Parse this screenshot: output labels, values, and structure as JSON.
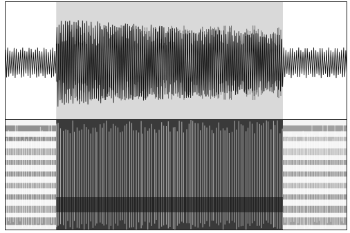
{
  "selection": {
    "start_fraction": 0.148,
    "end_fraction": 0.81
  },
  "colors": {
    "waveform": "#111111",
    "selection_fill": "#d9d9d9",
    "frame": "#1a1a1a",
    "background": "#ffffff"
  },
  "waveform": {
    "cycles": 160,
    "unselected_amplitude": 0.28,
    "selected_amplitude": 0.82,
    "envelope_decay": 0.35
  },
  "spectrogram": {
    "band_count": 9,
    "striation_count": 150
  }
}
